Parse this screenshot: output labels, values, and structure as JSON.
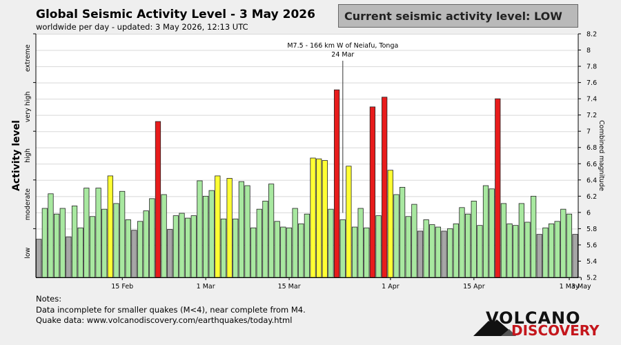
{
  "header": {
    "title": "Global Seismic Activity Level - 3 May 2026",
    "subtitle": "worldwide per day - updated:  3 May 2026, 12:13 UTC"
  },
  "status": {
    "text": "Current seismic activity level: LOW",
    "box_color": "#b9b9b9"
  },
  "notes": {
    "heading": "Notes:",
    "line1": "Data incomplete for smaller quakes (M<4), near complete from M4.",
    "line2": "Quake data: www.volcanodiscovery.com/earthquakes/today.html"
  },
  "logo": {
    "line1": "VOLCANO",
    "line2": "DISCOVERY"
  },
  "colors": {
    "low": "#a6a6a6",
    "moderate": "#a8e8a0",
    "high": "#ffff33",
    "very_high": "#e81c1c",
    "extreme": "#8b0000"
  },
  "chart_data": {
    "type": "bar",
    "ylabel": "Activity level",
    "y2label": "Combined magnitude",
    "ylim": [
      5.2,
      8.2
    ],
    "y2_ticks": [
      "5.2",
      "5.4",
      "5.6",
      "5.8",
      "6",
      "6.2",
      "6.4",
      "6.6",
      "6.8",
      "7",
      "7.2",
      "7.4",
      "7.6",
      "7.8",
      "8",
      "8.2"
    ],
    "level_bands": [
      {
        "label": "low",
        "from": 5.2,
        "to": 5.8
      },
      {
        "label": "moderate",
        "from": 5.8,
        "to": 6.4
      },
      {
        "label": "high",
        "from": 6.4,
        "to": 7.0
      },
      {
        "label": "very high",
        "from": 7.0,
        "to": 7.6
      },
      {
        "label": "extreme",
        "from": 7.6,
        "to": 8.2
      }
    ],
    "x_ticks": [
      {
        "label": "15 Feb",
        "day": 14
      },
      {
        "label": "1 Mar",
        "day": 28
      },
      {
        "label": "15 Mar",
        "day": 42
      },
      {
        "label": "1 Apr",
        "day": 59
      },
      {
        "label": "15 Apr",
        "day": 73
      },
      {
        "label": "1 May",
        "day": 89
      },
      {
        "label": "3 May",
        "day": 91
      }
    ],
    "annotation": {
      "line1": "M7.5 - 166 km W of Neiafu, Tonga",
      "line2": "24 Mar",
      "day": 51
    },
    "values": [
      5.67,
      6.05,
      6.23,
      5.98,
      6.05,
      5.7,
      6.08,
      5.81,
      6.3,
      5.95,
      6.3,
      6.04,
      6.45,
      6.11,
      6.26,
      5.91,
      5.78,
      5.89,
      6.02,
      6.17,
      7.12,
      6.22,
      5.79,
      5.96,
      5.99,
      5.93,
      5.96,
      6.39,
      6.2,
      6.27,
      6.45,
      5.92,
      6.42,
      5.92,
      6.38,
      6.33,
      5.81,
      6.04,
      6.14,
      6.35,
      5.89,
      5.82,
      5.81,
      6.05,
      5.86,
      5.98,
      6.67,
      6.66,
      6.64,
      6.04,
      7.51,
      5.91,
      6.57,
      5.82,
      6.05,
      5.81,
      7.3,
      5.96,
      7.42,
      6.52,
      6.22,
      6.31,
      5.95,
      6.1,
      5.77,
      5.91,
      5.85,
      5.82,
      5.77,
      5.8,
      5.86,
      6.06,
      5.98,
      6.14,
      5.84,
      6.33,
      6.29,
      7.4,
      6.11,
      5.86,
      5.84,
      6.11,
      5.88,
      6.2,
      5.73,
      5.81,
      5.86,
      5.89,
      6.04,
      5.98,
      5.73
    ]
  }
}
